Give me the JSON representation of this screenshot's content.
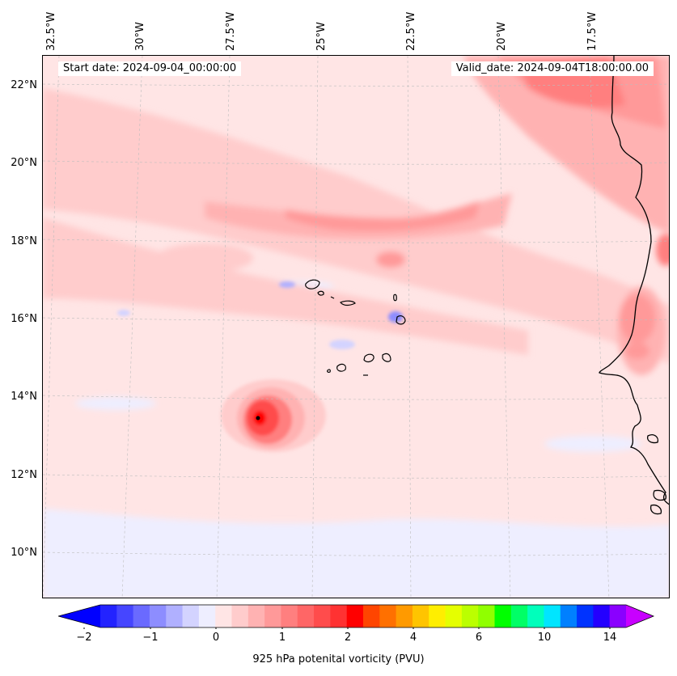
{
  "header": {
    "start_date": "Start date: 2024-09-04_00:00:00",
    "valid_date": "Valid_date: 2024-09-04T18:00:00.00"
  },
  "axes": {
    "lon_labels": [
      "32.5°W",
      "30°W",
      "27.5°W",
      "25°W",
      "22.5°W",
      "20°W",
      "17.5°W"
    ],
    "lat_labels": [
      "22°N",
      "20°N",
      "18°N",
      "16°N",
      "14°N",
      "12°N",
      "10°N"
    ]
  },
  "colorbar": {
    "label": "925 hPa potenital vorticity (PVU)",
    "tick_labels": [
      "−2",
      "−1",
      "0",
      "1",
      "2",
      "4",
      "6",
      "10",
      "14"
    ],
    "colors": [
      "#0000ff",
      "#2323ff",
      "#4646ff",
      "#6a6aff",
      "#8d8dff",
      "#b0b0ff",
      "#d3d3ff",
      "#eeeeff",
      "#ffe5e5",
      "#ffcccc",
      "#ffb2b2",
      "#ff9999",
      "#ff7f7f",
      "#ff6666",
      "#ff4c4c",
      "#ff3232",
      "#ff0000",
      "#ff4500",
      "#ff7000",
      "#ff9a00",
      "#ffc400",
      "#ffee00",
      "#e5ff00",
      "#bbff00",
      "#90ff00",
      "#00ff00",
      "#00ff66",
      "#00ffbb",
      "#00e5ff",
      "#0080ff",
      "#0033ff",
      "#2400ff",
      "#8a00ff",
      "#c800ff"
    ]
  },
  "map": {
    "background_field_color": "#ffe5e5",
    "feature": "Cabo Verde islands and West African coastline"
  }
}
